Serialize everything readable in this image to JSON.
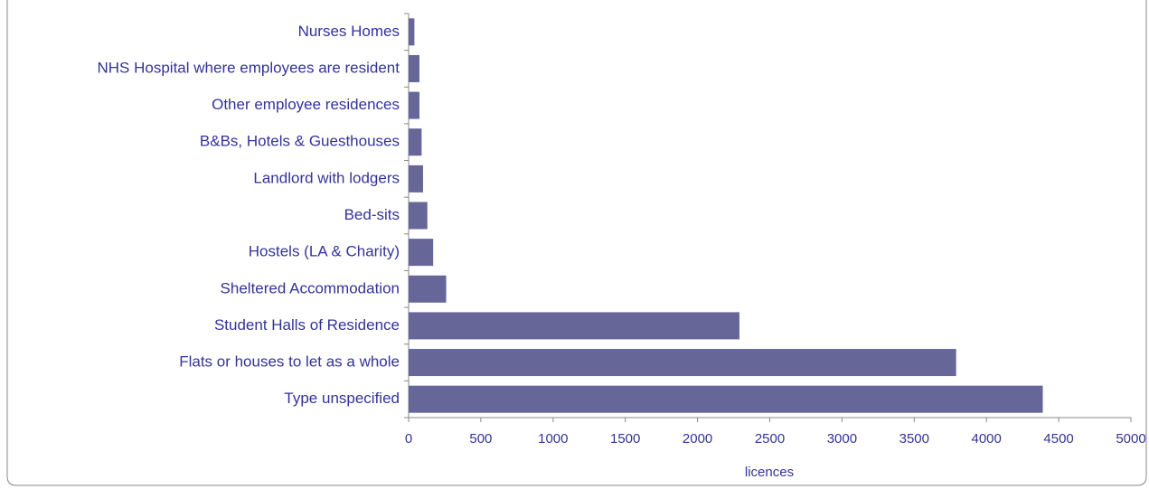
{
  "chart_data": {
    "type": "bar",
    "orientation": "horizontal",
    "categories": [
      "Nurses Homes",
      "NHS Hospital where employees are resident",
      "Other employee residences",
      "B&Bs, Hotels & Guesthouses",
      "Landlord with lodgers",
      "Bed-sits",
      "Hostels (LA & Charity)",
      "Sheltered Accommodation",
      "Student Halls of Residence",
      "Flats or houses to let as a whole",
      "Type unspecified"
    ],
    "values": [
      40,
      75,
      75,
      90,
      100,
      130,
      170,
      260,
      2290,
      3790,
      4390
    ],
    "color": "#666699",
    "x_label": "licences",
    "xlim": [
      0,
      5000
    ],
    "xticks": [
      0,
      500,
      1000,
      1500,
      2000,
      2500,
      3000,
      3500,
      4000,
      4500,
      5000
    ]
  }
}
